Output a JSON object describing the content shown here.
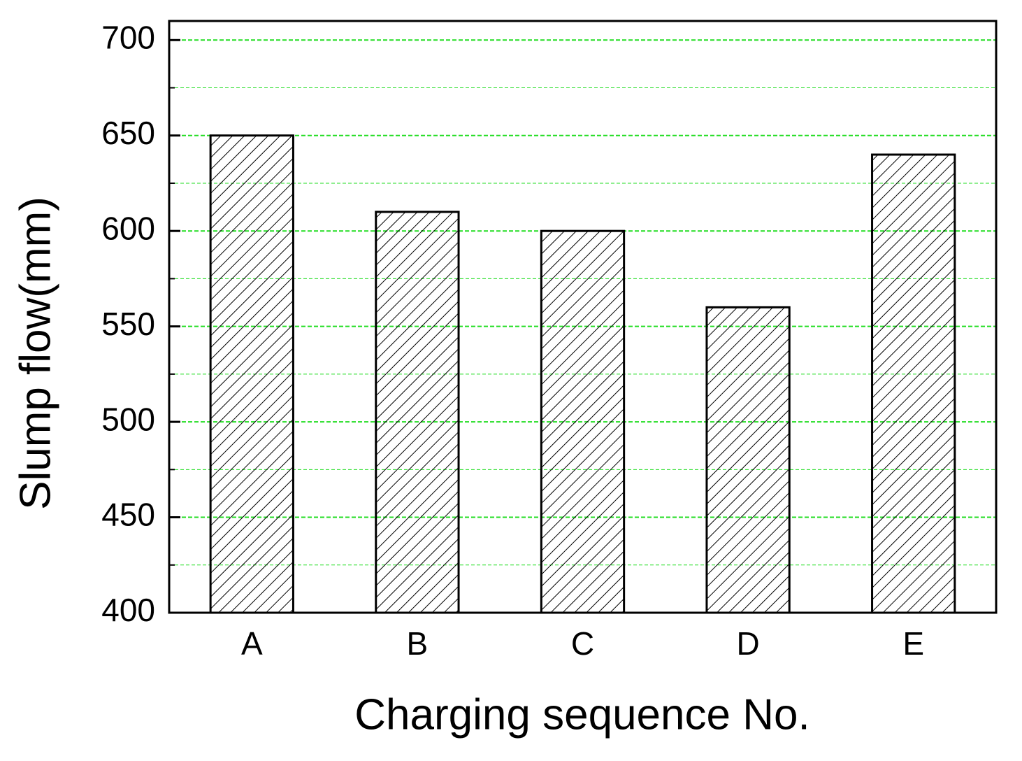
{
  "chart_data": {
    "type": "bar",
    "xlabel": "Charging sequence No.",
    "ylabel": "Slump flow(mm)",
    "categories": [
      "A",
      "B",
      "C",
      "D",
      "E"
    ],
    "values": [
      650,
      610,
      600,
      560,
      640
    ],
    "color": "#000000",
    "hatch": "diagonal",
    "ylim": [
      400,
      710
    ],
    "yticks": [
      400,
      450,
      500,
      550,
      600,
      650,
      700
    ],
    "minor_yticks": [
      425,
      475,
      525,
      575,
      625,
      675
    ],
    "grid": true,
    "grid_color": "#22dd22"
  }
}
